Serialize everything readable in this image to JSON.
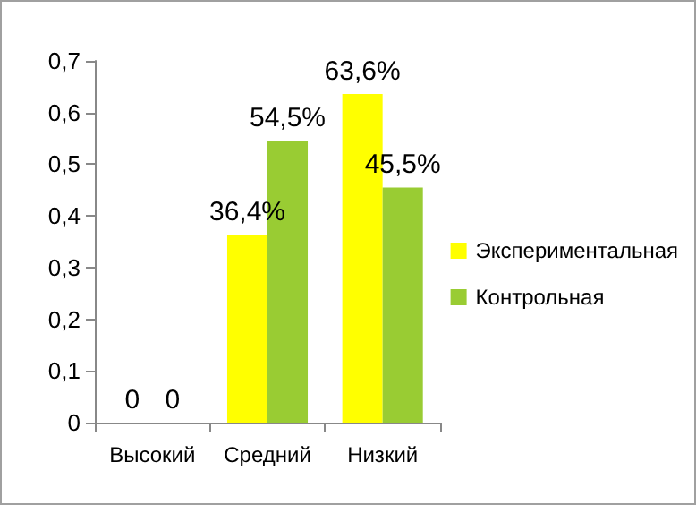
{
  "chart_data": {
    "type": "bar",
    "categories": [
      "Высокий",
      "Средний",
      "Низкий"
    ],
    "series": [
      {
        "name": "Экспериментальная",
        "color": "#ffff00",
        "values": [
          0,
          0.364,
          0.636
        ],
        "value_labels": [
          "0",
          "36,4%",
          "63,6%"
        ]
      },
      {
        "name": "Контрольная",
        "color": "#99cc33",
        "values": [
          0,
          0.545,
          0.455
        ],
        "value_labels": [
          "0",
          "54,5%",
          "45,5%"
        ]
      }
    ],
    "ylim": [
      0,
      0.7
    ],
    "yticks": [
      0,
      {
        "value": 0.1,
        "label": "0,1"
      },
      {
        "value": 0.2,
        "label": "0,2"
      },
      {
        "value": 0.3,
        "label": "0,3"
      },
      {
        "value": 0.4,
        "label": "0,4"
      },
      {
        "value": 0.5,
        "label": "0,5"
      },
      {
        "value": 0.6,
        "label": "0,6"
      },
      {
        "value": 0.7,
        "label": "0,7"
      }
    ],
    "grid": false,
    "legend": "right"
  }
}
